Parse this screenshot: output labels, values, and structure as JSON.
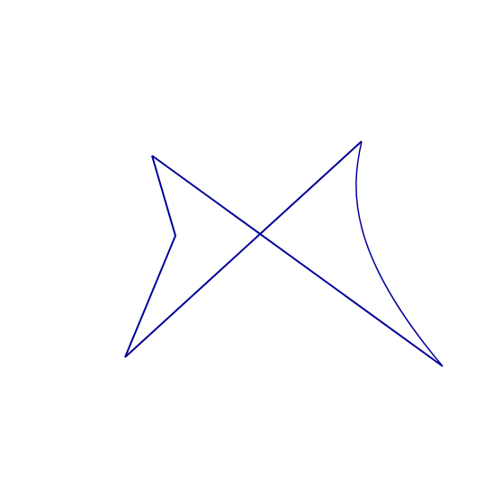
{
  "diagram": {
    "stroke_color": "#000099",
    "background_color": "#ffffff",
    "shape": "self-intersecting polygon with one curved edge"
  }
}
